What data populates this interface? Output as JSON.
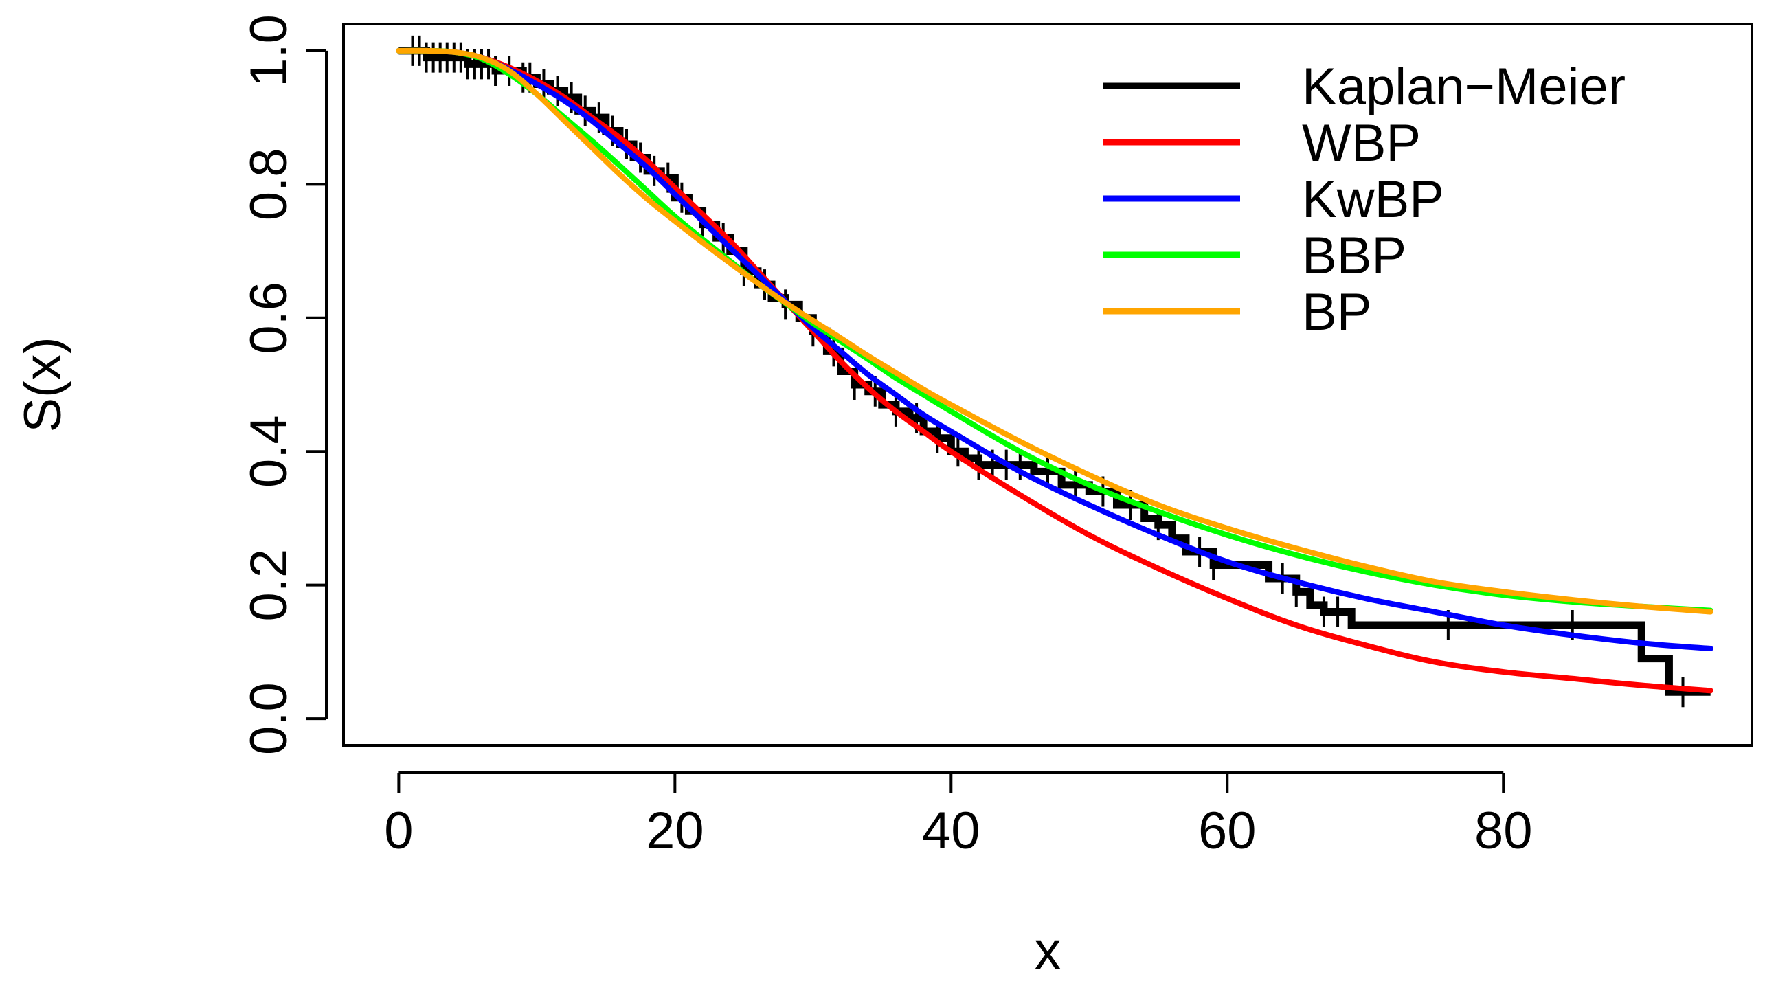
{
  "chart_data": {
    "type": "line",
    "title": "",
    "xlabel": "x",
    "ylabel": "S(x)",
    "xlim": [
      -4,
      98
    ],
    "ylim": [
      -0.04,
      1.04
    ],
    "x_ticks": [
      0,
      20,
      40,
      60,
      80
    ],
    "x_tick_labels": [
      "0",
      "20",
      "40",
      "60",
      "80"
    ],
    "y_ticks": [
      0.0,
      0.2,
      0.4,
      0.6,
      0.8,
      1.0
    ],
    "y_tick_labels": [
      "0.0",
      "0.2",
      "0.4",
      "0.6",
      "0.8",
      "1.0"
    ],
    "legend_position": "top-right",
    "kaplan_meier": {
      "name": "Kaplan−Meier",
      "color": "#000000",
      "steps": [
        [
          0,
          1.0
        ],
        [
          1,
          1.0
        ],
        [
          2,
          0.99
        ],
        [
          5,
          0.98
        ],
        [
          7,
          0.97
        ],
        [
          9,
          0.96
        ],
        [
          10,
          0.95
        ],
        [
          11,
          0.94
        ],
        [
          12,
          0.93
        ],
        [
          13,
          0.91
        ],
        [
          14,
          0.9
        ],
        [
          15,
          0.88
        ],
        [
          16,
          0.86
        ],
        [
          17,
          0.84
        ],
        [
          18,
          0.82
        ],
        [
          19,
          0.81
        ],
        [
          20,
          0.78
        ],
        [
          21,
          0.76
        ],
        [
          22,
          0.74
        ],
        [
          23,
          0.72
        ],
        [
          24,
          0.7
        ],
        [
          25,
          0.67
        ],
        [
          26,
          0.65
        ],
        [
          27,
          0.63
        ],
        [
          28,
          0.62
        ],
        [
          29,
          0.6
        ],
        [
          30,
          0.58
        ],
        [
          31,
          0.55
        ],
        [
          32,
          0.52
        ],
        [
          33,
          0.5
        ],
        [
          34,
          0.49
        ],
        [
          35,
          0.47
        ],
        [
          36,
          0.46
        ],
        [
          37,
          0.45
        ],
        [
          38,
          0.43
        ],
        [
          39,
          0.42
        ],
        [
          40,
          0.4
        ],
        [
          41,
          0.39
        ],
        [
          42,
          0.38
        ],
        [
          46,
          0.37
        ],
        [
          48,
          0.35
        ],
        [
          50,
          0.34
        ],
        [
          52,
          0.32
        ],
        [
          54,
          0.3
        ],
        [
          55,
          0.29
        ],
        [
          56,
          0.27
        ],
        [
          57,
          0.25
        ],
        [
          59,
          0.23
        ],
        [
          63,
          0.21
        ],
        [
          65,
          0.19
        ],
        [
          66,
          0.17
        ],
        [
          67,
          0.16
        ],
        [
          69,
          0.14
        ],
        [
          90,
          0.09
        ],
        [
          92,
          0.04
        ],
        [
          95,
          0.04
        ]
      ],
      "censor_times": [
        1,
        1.5,
        2,
        2.5,
        3,
        3.5,
        4,
        4.5,
        5,
        5.5,
        6,
        6.5,
        7,
        8,
        9,
        9.5,
        10.5,
        11.5,
        12.5,
        13.5,
        14.5,
        15.5,
        16.5,
        17.5,
        18.5,
        19.5,
        20.5,
        22,
        23.5,
        25,
        26.5,
        28,
        30,
        31.5,
        33,
        34.5,
        36,
        37.5,
        39,
        40.5,
        42,
        43,
        44,
        45,
        47,
        49,
        51,
        53,
        55,
        58,
        59,
        64,
        65,
        67,
        68,
        76,
        85,
        93
      ]
    },
    "series": [
      {
        "name": "WBP",
        "color": "#ff0000",
        "x": [
          0,
          2,
          4,
          6,
          8,
          10,
          12,
          14,
          16,
          18,
          20,
          22,
          24,
          26,
          28,
          30,
          32,
          34,
          36,
          38,
          40,
          45,
          50,
          55,
          60,
          65,
          70,
          75,
          80,
          85,
          90,
          95
        ],
        "values": [
          1.0,
          1.0,
          0.998,
          0.99,
          0.975,
          0.955,
          0.93,
          0.9,
          0.87,
          0.835,
          0.795,
          0.755,
          0.715,
          0.67,
          0.625,
          0.58,
          0.535,
          0.495,
          0.46,
          0.43,
          0.4,
          0.335,
          0.275,
          0.225,
          0.18,
          0.14,
          0.11,
          0.085,
          0.07,
          0.06,
          0.05,
          0.042
        ]
      },
      {
        "name": "KwBP",
        "color": "#0000ff",
        "x": [
          0,
          2,
          4,
          6,
          8,
          10,
          12,
          14,
          16,
          18,
          20,
          22,
          24,
          26,
          28,
          30,
          32,
          34,
          36,
          38,
          40,
          45,
          50,
          55,
          60,
          65,
          70,
          75,
          80,
          85,
          90,
          95
        ],
        "values": [
          1.0,
          1.0,
          0.998,
          0.99,
          0.972,
          0.95,
          0.925,
          0.895,
          0.86,
          0.825,
          0.785,
          0.745,
          0.705,
          0.665,
          0.625,
          0.585,
          0.55,
          0.515,
          0.485,
          0.455,
          0.43,
          0.37,
          0.32,
          0.275,
          0.235,
          0.205,
          0.18,
          0.16,
          0.14,
          0.125,
          0.113,
          0.105
        ]
      },
      {
        "name": "BBP",
        "color": "#00ff00",
        "x": [
          0,
          2,
          4,
          6,
          8,
          10,
          12,
          14,
          16,
          18,
          20,
          22,
          24,
          26,
          28,
          30,
          32,
          34,
          36,
          38,
          40,
          45,
          50,
          55,
          60,
          65,
          70,
          75,
          80,
          85,
          90,
          95
        ],
        "values": [
          1.0,
          1.0,
          0.998,
          0.988,
          0.965,
          0.935,
          0.9,
          0.865,
          0.828,
          0.79,
          0.752,
          0.718,
          0.685,
          0.652,
          0.622,
          0.592,
          0.565,
          0.538,
          0.51,
          0.485,
          0.46,
          0.4,
          0.35,
          0.31,
          0.275,
          0.245,
          0.22,
          0.2,
          0.185,
          0.175,
          0.168,
          0.162
        ]
      },
      {
        "name": "BP",
        "color": "#ffa500",
        "x": [
          0,
          2,
          4,
          6,
          8,
          10,
          12,
          14,
          16,
          18,
          20,
          22,
          24,
          26,
          28,
          30,
          32,
          34,
          36,
          38,
          40,
          45,
          50,
          55,
          60,
          65,
          70,
          75,
          80,
          85,
          90,
          95
        ],
        "values": [
          1.0,
          1.0,
          0.998,
          0.99,
          0.97,
          0.935,
          0.895,
          0.855,
          0.815,
          0.778,
          0.745,
          0.713,
          0.682,
          0.652,
          0.623,
          0.596,
          0.57,
          0.543,
          0.518,
          0.493,
          0.47,
          0.415,
          0.365,
          0.32,
          0.285,
          0.255,
          0.228,
          0.205,
          0.19,
          0.178,
          0.168,
          0.16
        ]
      }
    ]
  }
}
